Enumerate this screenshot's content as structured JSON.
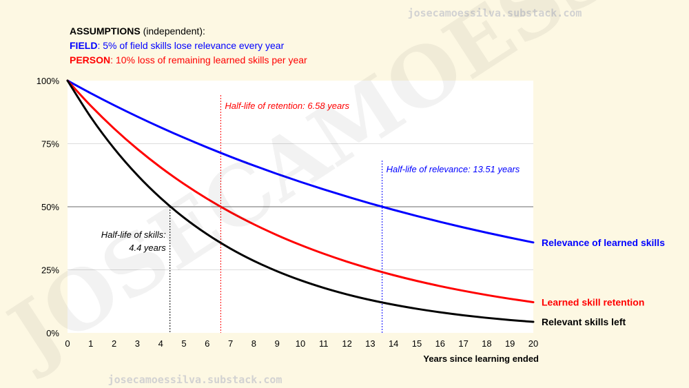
{
  "watermark": {
    "top_text": "josecamoessilva.substack.com",
    "bottom_text": "josecamoessilva.substack.com",
    "diagonal_text": "JOSECAMOESSILVA"
  },
  "assumptions": {
    "title_bold": "ASSUMPTIONS",
    "title_rest": " (independent):",
    "field_label": "FIELD",
    "field_text": ": 5% of field skills lose relevance every year",
    "person_label": "PERSON",
    "person_text": ": 10% loss of remaining learned skills per year"
  },
  "colors": {
    "field": "#0000ff",
    "person": "#ff0000",
    "combined": "#000000",
    "grid": "#dddddd",
    "background": "#fdf8e3",
    "plot_bg": "#ffffff"
  },
  "chart_data": {
    "type": "line",
    "title": "",
    "xlabel": "Years since learning ended",
    "ylabel": "",
    "xlim": [
      0,
      20
    ],
    "ylim": [
      0,
      100
    ],
    "x_ticks": [
      0,
      1,
      2,
      3,
      4,
      5,
      6,
      7,
      8,
      9,
      10,
      11,
      12,
      13,
      14,
      15,
      16,
      17,
      18,
      19,
      20
    ],
    "y_ticks": [
      {
        "value": 0,
        "label": "0%"
      },
      {
        "value": 25,
        "label": "25%"
      },
      {
        "value": 50,
        "label": "50%"
      },
      {
        "value": 75,
        "label": "75%"
      },
      {
        "value": 100,
        "label": "100%"
      }
    ],
    "x": [
      0,
      1,
      2,
      3,
      4,
      5,
      6,
      7,
      8,
      9,
      10,
      11,
      12,
      13,
      14,
      15,
      16,
      17,
      18,
      19,
      20
    ],
    "series": [
      {
        "name": "Relevance of learned skills",
        "color": "#0000ff",
        "values": [
          100,
          95,
          90.25,
          85.74,
          81.45,
          77.38,
          73.51,
          69.83,
          66.34,
          63.02,
          59.87,
          56.88,
          54.04,
          51.33,
          48.77,
          46.33,
          44.01,
          41.81,
          39.72,
          37.74,
          35.85
        ]
      },
      {
        "name": "Learned skill retention",
        "color": "#ff0000",
        "values": [
          100,
          90,
          81,
          72.9,
          65.61,
          59.05,
          53.14,
          47.83,
          43.05,
          38.74,
          34.87,
          31.38,
          28.24,
          25.42,
          22.88,
          20.59,
          18.53,
          16.68,
          15.01,
          13.51,
          12.16
        ]
      },
      {
        "name": "Relevant skills left",
        "color": "#000000",
        "values": [
          100,
          85.5,
          73.1,
          62.51,
          53.44,
          45.69,
          39.07,
          33.4,
          28.56,
          24.42,
          20.88,
          17.85,
          15.26,
          13.05,
          11.16,
          9.54,
          8.16,
          6.97,
          5.96,
          5.1,
          4.36
        ]
      }
    ],
    "reference_line": {
      "value": 50
    },
    "annotations": [
      {
        "x": 4.4,
        "text_lines": [
          "Half-life of skills:",
          "4.4 years"
        ],
        "color": "#000000"
      },
      {
        "x": 6.58,
        "text_lines": [
          "Half-life of retention: 6.58 years"
        ],
        "color": "#ff0000"
      },
      {
        "x": 13.51,
        "text_lines": [
          "Half-life of relevance: 13.51 years"
        ],
        "color": "#0000ff"
      }
    ]
  }
}
